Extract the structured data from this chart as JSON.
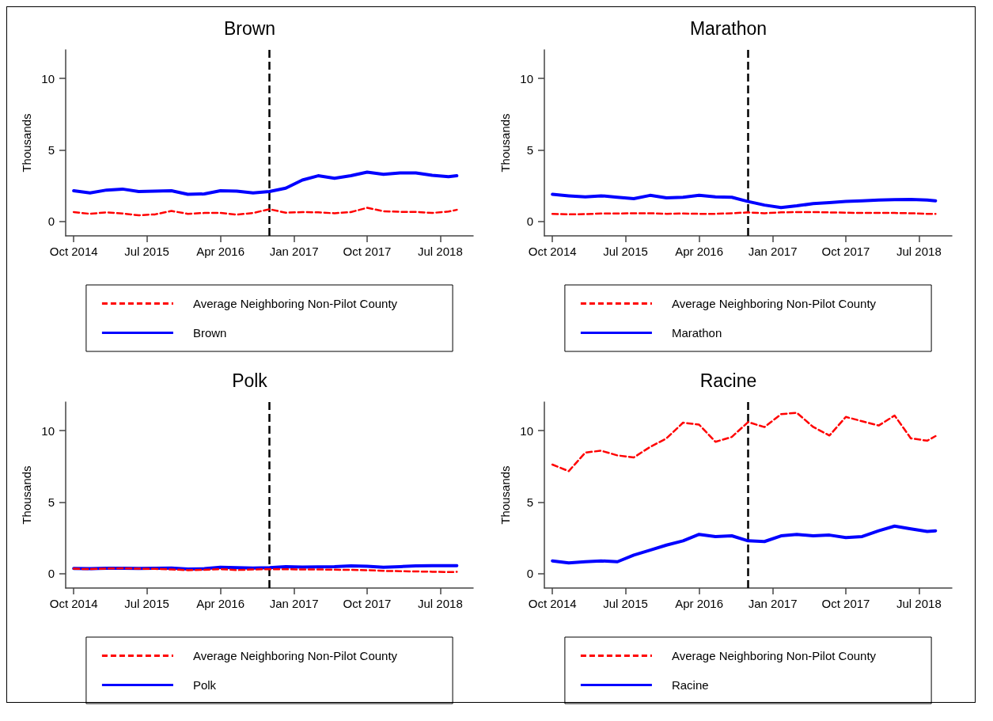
{
  "chart_data": [
    {
      "type": "line",
      "title": "Brown",
      "ylabel": "Thousands",
      "x": [
        "2014-10",
        "2014-12",
        "2015-02",
        "2015-04",
        "2015-06",
        "2015-08",
        "2015-10",
        "2015-12",
        "2016-02",
        "2016-04",
        "2016-06",
        "2016-08",
        "2016-10",
        "2016-12",
        "2017-02",
        "2017-04",
        "2017-06",
        "2017-08",
        "2017-10",
        "2017-12",
        "2018-02",
        "2018-04",
        "2018-06",
        "2018-08",
        "2018-09"
      ],
      "xlim": [
        "2014-09-01",
        "2018-11-01"
      ],
      "xticks": [
        {
          "value": "2014-10",
          "label": "Oct 2014"
        },
        {
          "value": "2015-07",
          "label": "Jul 2015"
        },
        {
          "value": "2016-04",
          "label": "Apr 2016"
        },
        {
          "value": "2017-01",
          "label": "Jan 2017"
        },
        {
          "value": "2017-10",
          "label": "Oct 2017"
        },
        {
          "value": "2018-07",
          "label": "Jul 2018"
        }
      ],
      "ylim": [
        -1,
        12
      ],
      "yticks": [
        0,
        5,
        10
      ],
      "grid": false,
      "legend": "bottom",
      "marker": "none",
      "ref_lines": [
        {
          "axis": "x",
          "value": "2016-10",
          "color": "#000000",
          "line_style": "dashed"
        }
      ],
      "series": [
        {
          "name": "Average Neighboring Non-Pilot County",
          "color": "#ff0000",
          "line_style": "dashed",
          "values": [
            0.66,
            0.54,
            0.64,
            0.56,
            0.44,
            0.5,
            0.74,
            0.54,
            0.6,
            0.6,
            0.48,
            0.6,
            0.86,
            0.62,
            0.66,
            0.64,
            0.58,
            0.66,
            0.96,
            0.72,
            0.68,
            0.68,
            0.6,
            0.7,
            0.82
          ]
        },
        {
          "name": "Brown",
          "color": "#0000ff",
          "line_style": "solid",
          "values": [
            2.15,
            2.0,
            2.2,
            2.27,
            2.1,
            2.13,
            2.15,
            1.9,
            1.93,
            2.15,
            2.13,
            2.0,
            2.1,
            2.33,
            2.9,
            3.2,
            3.03,
            3.2,
            3.45,
            3.3,
            3.4,
            3.4,
            3.23,
            3.13,
            3.2
          ]
        }
      ]
    },
    {
      "type": "line",
      "title": "Marathon",
      "ylabel": "Thousands",
      "x": [
        "2014-10",
        "2014-12",
        "2015-02",
        "2015-04",
        "2015-06",
        "2015-08",
        "2015-10",
        "2015-12",
        "2016-02",
        "2016-04",
        "2016-06",
        "2016-08",
        "2016-10",
        "2016-12",
        "2017-02",
        "2017-04",
        "2017-06",
        "2017-08",
        "2017-10",
        "2017-12",
        "2018-02",
        "2018-04",
        "2018-06",
        "2018-08",
        "2018-09"
      ],
      "xlim": [
        "2014-09-01",
        "2018-11-01"
      ],
      "xticks": [
        {
          "value": "2014-10",
          "label": "Oct 2014"
        },
        {
          "value": "2015-07",
          "label": "Jul 2015"
        },
        {
          "value": "2016-04",
          "label": "Apr 2016"
        },
        {
          "value": "2017-01",
          "label": "Jan 2017"
        },
        {
          "value": "2017-10",
          "label": "Oct 2017"
        },
        {
          "value": "2018-07",
          "label": "Jul 2018"
        }
      ],
      "ylim": [
        -1,
        12
      ],
      "yticks": [
        0,
        5,
        10
      ],
      "grid": false,
      "legend": "bottom",
      "marker": "none",
      "ref_lines": [
        {
          "axis": "x",
          "value": "2016-10",
          "color": "#000000",
          "line_style": "dashed"
        }
      ],
      "series": [
        {
          "name": "Average Neighboring Non-Pilot County",
          "color": "#ff0000",
          "line_style": "dashed",
          "values": [
            0.54,
            0.5,
            0.52,
            0.56,
            0.56,
            0.58,
            0.58,
            0.54,
            0.56,
            0.54,
            0.54,
            0.58,
            0.64,
            0.58,
            0.64,
            0.66,
            0.66,
            0.64,
            0.62,
            0.6,
            0.6,
            0.6,
            0.58,
            0.54,
            0.54
          ]
        },
        {
          "name": "Marathon",
          "color": "#0000ff",
          "line_style": "solid",
          "values": [
            1.9,
            1.8,
            1.72,
            1.8,
            1.7,
            1.6,
            1.83,
            1.65,
            1.7,
            1.83,
            1.73,
            1.7,
            1.4,
            1.15,
            0.98,
            1.1,
            1.25,
            1.33,
            1.4,
            1.45,
            1.5,
            1.53,
            1.55,
            1.5,
            1.45
          ]
        }
      ]
    },
    {
      "type": "line",
      "title": "Polk",
      "ylabel": "Thousands",
      "x": [
        "2014-10",
        "2014-12",
        "2015-02",
        "2015-04",
        "2015-06",
        "2015-08",
        "2015-10",
        "2015-12",
        "2016-02",
        "2016-04",
        "2016-06",
        "2016-08",
        "2016-10",
        "2016-12",
        "2017-02",
        "2017-04",
        "2017-06",
        "2017-08",
        "2017-10",
        "2017-12",
        "2018-02",
        "2018-04",
        "2018-06",
        "2018-08",
        "2018-09"
      ],
      "xlim": [
        "2014-09-01",
        "2018-11-01"
      ],
      "xticks": [
        {
          "value": "2014-10",
          "label": "Oct 2014"
        },
        {
          "value": "2015-07",
          "label": "Jul 2015"
        },
        {
          "value": "2016-04",
          "label": "Apr 2016"
        },
        {
          "value": "2017-01",
          "label": "Jan 2017"
        },
        {
          "value": "2017-10",
          "label": "Oct 2017"
        },
        {
          "value": "2018-07",
          "label": "Jul 2018"
        }
      ],
      "ylim": [
        -1,
        12
      ],
      "yticks": [
        0,
        5,
        10
      ],
      "grid": false,
      "legend": "bottom",
      "marker": "none",
      "ref_lines": [
        {
          "axis": "x",
          "value": "2016-10",
          "color": "#000000",
          "line_style": "dashed"
        }
      ],
      "series": [
        {
          "name": "Average Neighboring Non-Pilot County",
          "color": "#ff0000",
          "line_style": "dashed",
          "values": [
            0.35,
            0.32,
            0.36,
            0.38,
            0.35,
            0.34,
            0.3,
            0.25,
            0.27,
            0.32,
            0.26,
            0.3,
            0.32,
            0.32,
            0.3,
            0.3,
            0.28,
            0.27,
            0.25,
            0.2,
            0.18,
            0.16,
            0.14,
            0.12,
            0.13
          ]
        },
        {
          "name": "Polk",
          "color": "#0000ff",
          "line_style": "solid",
          "values": [
            0.37,
            0.36,
            0.38,
            0.38,
            0.37,
            0.38,
            0.4,
            0.33,
            0.35,
            0.45,
            0.42,
            0.4,
            0.43,
            0.5,
            0.46,
            0.48,
            0.5,
            0.55,
            0.52,
            0.45,
            0.5,
            0.55,
            0.56,
            0.56,
            0.56
          ]
        }
      ]
    },
    {
      "type": "line",
      "title": "Racine",
      "ylabel": "Thousands",
      "x": [
        "2014-10",
        "2014-12",
        "2015-02",
        "2015-04",
        "2015-06",
        "2015-08",
        "2015-10",
        "2015-12",
        "2016-02",
        "2016-04",
        "2016-06",
        "2016-08",
        "2016-10",
        "2016-12",
        "2017-02",
        "2017-04",
        "2017-06",
        "2017-08",
        "2017-10",
        "2017-12",
        "2018-02",
        "2018-04",
        "2018-06",
        "2018-08",
        "2018-09"
      ],
      "xlim": [
        "2014-09-01",
        "2018-11-01"
      ],
      "xticks": [
        {
          "value": "2014-10",
          "label": "Oct 2014"
        },
        {
          "value": "2015-07",
          "label": "Jul 2015"
        },
        {
          "value": "2016-04",
          "label": "Apr 2016"
        },
        {
          "value": "2017-01",
          "label": "Jan 2017"
        },
        {
          "value": "2017-10",
          "label": "Oct 2017"
        },
        {
          "value": "2018-07",
          "label": "Jul 2018"
        }
      ],
      "ylim": [
        -1,
        12
      ],
      "yticks": [
        0,
        5,
        10
      ],
      "grid": false,
      "legend": "bottom",
      "marker": "none",
      "ref_lines": [
        {
          "axis": "x",
          "value": "2016-10",
          "color": "#000000",
          "line_style": "dashed"
        }
      ],
      "series": [
        {
          "name": "Average Neighboring Non-Pilot County",
          "color": "#ff0000",
          "line_style": "dashed",
          "values": [
            7.63,
            7.17,
            8.47,
            8.6,
            8.27,
            8.13,
            8.86,
            9.46,
            10.56,
            10.42,
            9.22,
            9.56,
            10.6,
            10.25,
            11.15,
            11.25,
            10.26,
            9.66,
            10.96,
            10.66,
            10.36,
            11.06,
            9.46,
            9.3,
            9.62
          ]
        },
        {
          "name": "Racine",
          "color": "#0000ff",
          "line_style": "solid",
          "values": [
            0.9,
            0.76,
            0.84,
            0.9,
            0.84,
            1.3,
            1.65,
            2.0,
            2.3,
            2.75,
            2.6,
            2.65,
            2.3,
            2.25,
            2.65,
            2.75,
            2.65,
            2.7,
            2.53,
            2.6,
            3.0,
            3.33,
            3.13,
            2.95,
            3.0
          ]
        }
      ]
    }
  ]
}
